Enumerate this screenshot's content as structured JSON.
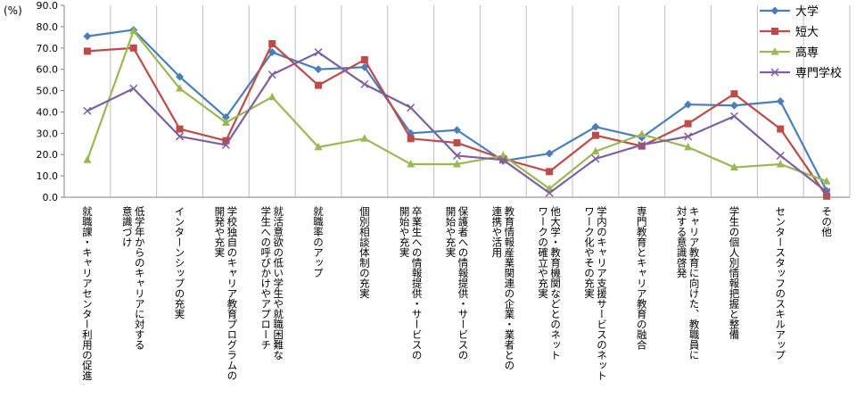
{
  "chart_data": {
    "type": "line",
    "yunit": "(%)",
    "ylim": [
      0,
      90
    ],
    "ytick_step": 10,
    "ytick_labels": [
      "0.0",
      "10.0",
      "20.0",
      "30.0",
      "40.0",
      "50.0",
      "60.0",
      "70.0",
      "80.0",
      "90.0"
    ],
    "grid": "vertical-category-lines",
    "legend_position": "top-right",
    "categories": [
      "就職課・キャリアセンター利用の促進",
      "低学年からのキャリアに対する意識づけ",
      "インターンシップの充実",
      "学校独自のキャリア教育プログラムの開発や充実",
      "就活意欲の低い学生や就職困難な学生への呼びかけやアプローチ",
      "就職率のアップ",
      "個別相談体制の充実",
      "卒業生への情報提供・サービスの開始や充実",
      "保護者への情報提供・サービスの開始や充実",
      "教育情報産業関連の企業・業者との連携や活用",
      "他大学・教育機関などとのネットワークの確立や充実",
      "学内のキャリア支援サービスのネットワーク化やその充実",
      "専門教育とキャリア教育の融合",
      "キャリア教育に向けた、教職員に対する意識啓発",
      "学生の個人別情報把握と整備",
      "センタースタッフのスキルアップ",
      "その他"
    ],
    "category_lines": [
      [
        "就職課・キャリアセンター利用の促進"
      ],
      [
        "低学年からのキャリアに対する",
        "意識づけ"
      ],
      [
        "インターンシップの充実"
      ],
      [
        "学校独自のキャリア教育プログラムの",
        "開発や充実"
      ],
      [
        "就活意欲の低い学生や就職困難な",
        "学生への呼びかけやアプローチ"
      ],
      [
        "就職率のアップ"
      ],
      [
        "個別相談体制の充実"
      ],
      [
        "卒業生への情報提供・サービスの",
        "開始や充実"
      ],
      [
        "保護者への情報提供・サービスの",
        "開始や充実"
      ],
      [
        "教育情報産業関連の企業・業者との",
        "連携や活用"
      ],
      [
        "他大学・教育機関などとのネット",
        "ワークの確立や充実"
      ],
      [
        "学内のキャリア支援サービスのネット",
        "ワーク化やその充実"
      ],
      [
        "専門教育とキャリア教育の融合"
      ],
      [
        "キャリア教育に向けた、教職員に",
        "対する意識啓発"
      ],
      [
        "学生の個人別情報把握と整備"
      ],
      [
        "センタースタッフのスキルアップ"
      ],
      [
        "その他"
      ]
    ],
    "series": [
      {
        "name": "大学",
        "color": "#4a7ebb",
        "marker": "diamond",
        "values": [
          75.5,
          78.5,
          56.5,
          37.5,
          68.0,
          60.0,
          61.0,
          30.0,
          31.5,
          17.0,
          20.5,
          33.0,
          28.0,
          43.5,
          43.0,
          45.0,
          3.0
        ]
      },
      {
        "name": "短大",
        "color": "#be4b48",
        "marker": "square",
        "values": [
          68.5,
          70.0,
          32.0,
          26.5,
          72.0,
          52.5,
          64.5,
          27.5,
          25.5,
          18.0,
          12.0,
          29.0,
          24.0,
          34.5,
          48.5,
          32.0,
          0.5
        ]
      },
      {
        "name": "高専",
        "color": "#98b954",
        "marker": "triangle",
        "values": [
          17.5,
          78.0,
          51.0,
          35.0,
          47.0,
          23.5,
          27.5,
          15.5,
          15.5,
          19.5,
          4.0,
          21.5,
          29.5,
          23.5,
          14.0,
          15.5,
          7.5
        ]
      },
      {
        "name": "専門学校",
        "color": "#7d60a0",
        "marker": "x",
        "values": [
          40.5,
          51.0,
          28.5,
          24.5,
          57.5,
          68.0,
          53.0,
          42.0,
          19.5,
          17.5,
          2.0,
          18.0,
          24.5,
          28.5,
          38.0,
          19.5,
          2.5
        ]
      }
    ]
  }
}
